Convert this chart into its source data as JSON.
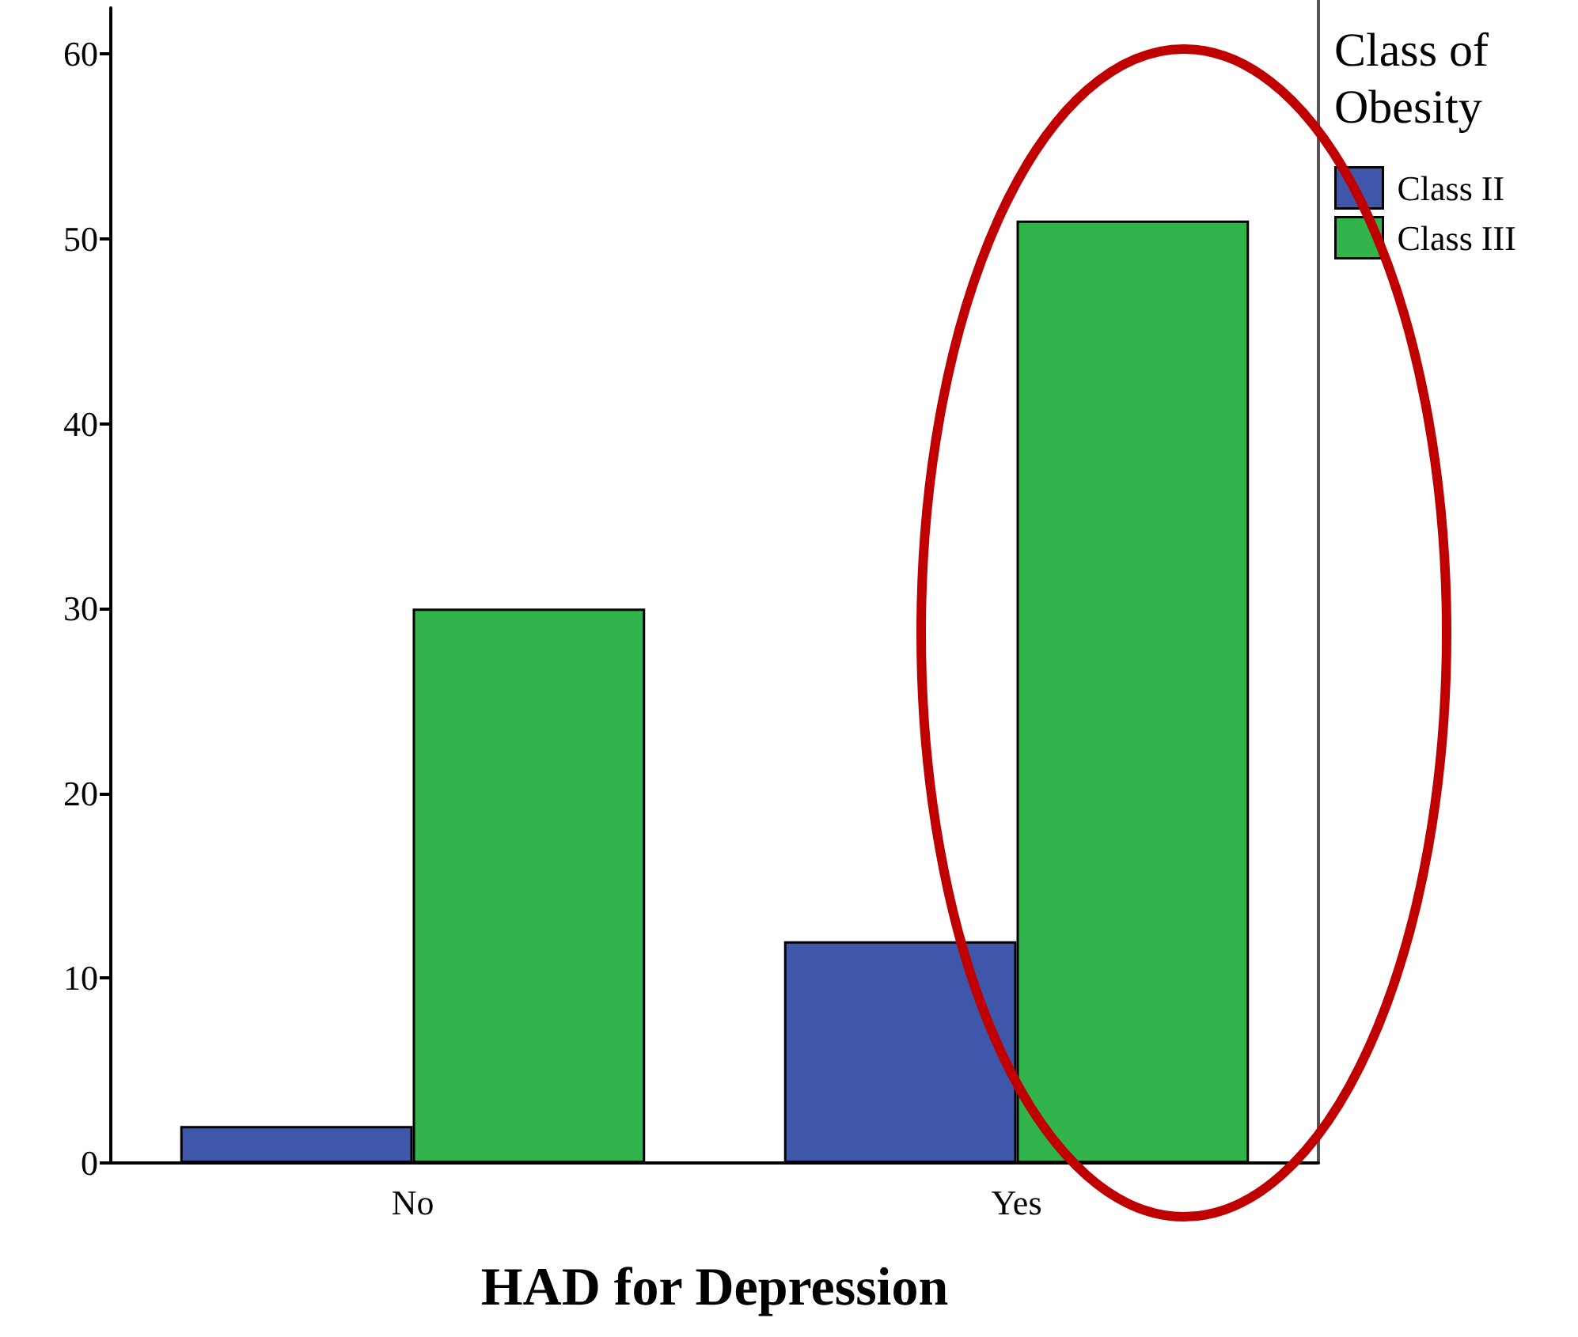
{
  "chart_data": {
    "type": "bar",
    "xlabel": "HAD for Depression",
    "legend_title": "Class of Obesity",
    "categories": [
      "No",
      "Yes"
    ],
    "series": [
      {
        "name": "Class II",
        "color": "#3f57aa",
        "values": [
          2,
          12
        ]
      },
      {
        "name": "Class III",
        "color": "#31b44b",
        "values": [
          30,
          51
        ]
      }
    ],
    "ylim": [
      0,
      62.5
    ],
    "yticks": [
      0,
      10,
      20,
      30,
      40,
      50,
      60
    ],
    "grid": false,
    "legend": "top right"
  }
}
